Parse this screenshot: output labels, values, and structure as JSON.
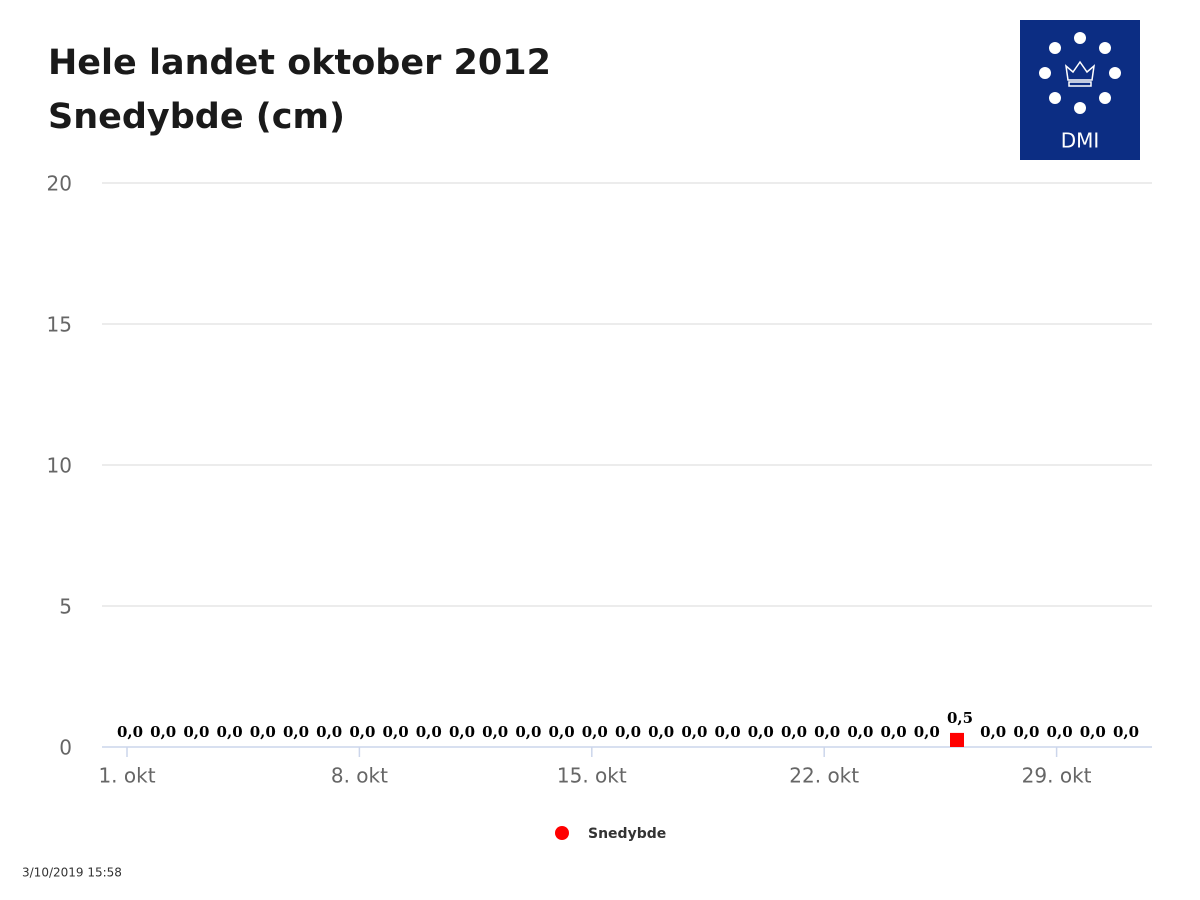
{
  "chart_data": {
    "type": "bar",
    "title": "Hele landet oktober 2012",
    "subtitle": "Snedybde (cm)",
    "categories": [
      "1. okt",
      null,
      null,
      null,
      null,
      null,
      null,
      "8. okt",
      null,
      null,
      null,
      null,
      null,
      null,
      "15. okt",
      null,
      null,
      null,
      null,
      null,
      null,
      "22. okt",
      null,
      null,
      null,
      null,
      null,
      null,
      "29. okt",
      null,
      null
    ],
    "series": [
      {
        "name": "Snedybde",
        "color": "#ff0000",
        "values": [
          0,
          0,
          0,
          0,
          0,
          0,
          0,
          0,
          0,
          0,
          0,
          0,
          0,
          0,
          0,
          0,
          0,
          0,
          0,
          0,
          0,
          0,
          0,
          0,
          0,
          0.5,
          0,
          0,
          0,
          0,
          0
        ],
        "value_labels": [
          "0,0",
          "0,0",
          "0,0",
          "0,0",
          "0,0",
          "0,0",
          "0,0",
          "0,0",
          "0,0",
          "0,0",
          "0,0",
          "0,0",
          "0,0",
          "0,0",
          "0,0",
          "0,0",
          "0,0",
          "0,0",
          "0,0",
          "0,0",
          "0,0",
          "0,0",
          "0,0",
          "0,0",
          "0,0",
          "0,5",
          "0,0",
          "0,0",
          "0,0",
          "0,0",
          "0,0"
        ]
      }
    ],
    "ylim": [
      0,
      20
    ],
    "yticks": [
      0,
      5,
      10,
      15,
      20
    ],
    "grid": true,
    "logo": "DMI",
    "timestamp": "3/10/2019 15:58"
  }
}
